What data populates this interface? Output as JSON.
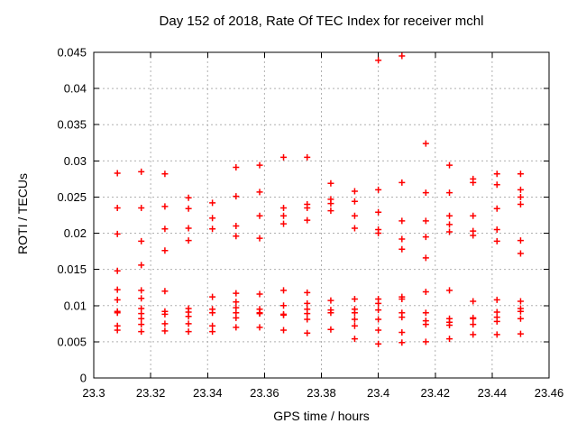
{
  "chart_data": {
    "type": "scatter",
    "title": "Day 152 of 2018, Rate Of TEC Index for receiver mchl",
    "xlabel": "GPS time / hours",
    "ylabel": "ROTI / TECUs",
    "xlim": [
      23.3,
      23.46
    ],
    "ylim": [
      0,
      0.045
    ],
    "grid": true,
    "legend": "none",
    "marker": {
      "shape": "plus",
      "color": "#ff0000",
      "size": 7
    },
    "colors": {
      "points": "#ff0000",
      "grid": "#b0b0b0",
      "axis": "#000000",
      "background": "#ffffff",
      "text": "#000000"
    },
    "xticks": {
      "values": [
        23.3,
        23.32,
        23.34,
        23.36,
        23.38,
        23.4,
        23.42,
        23.44,
        23.46
      ],
      "labels": [
        "23.3",
        "23.32",
        "23.34",
        "23.36",
        "23.38",
        "23.4",
        "23.42",
        "23.44",
        "23.46"
      ]
    },
    "yticks": {
      "values": [
        0,
        0.005,
        0.01,
        0.015,
        0.02,
        0.025,
        0.03,
        0.035,
        0.04,
        0.045
      ],
      "labels": [
        "0",
        "0.005",
        "0.01",
        "0.015",
        "0.02",
        "0.025",
        "0.03",
        "0.035",
        "0.04",
        "0.045"
      ]
    },
    "series": [
      {
        "name": "ROTI",
        "clusters": [
          {
            "x": 23.3083,
            "y": [
              0.0283,
              0.0235,
              0.0199,
              0.0148,
              0.0122,
              0.0108,
              0.0092,
              0.009,
              0.0072,
              0.0066
            ]
          },
          {
            "x": 23.3167,
            "y": [
              0.0285,
              0.0235,
              0.0189,
              0.0156,
              0.0121,
              0.011,
              0.0096,
              0.0089,
              0.0082,
              0.0074,
              0.0064
            ]
          },
          {
            "x": 23.325,
            "y": [
              0.0282,
              0.0237,
              0.0206,
              0.0176,
              0.012,
              0.0092,
              0.0088,
              0.0075,
              0.0065
            ]
          },
          {
            "x": 23.3333,
            "y": [
              0.0249,
              0.0234,
              0.0207,
              0.019,
              0.0096,
              0.0091,
              0.0085,
              0.0075,
              0.0064
            ]
          },
          {
            "x": 23.3417,
            "y": [
              0.0242,
              0.0221,
              0.0206,
              0.0112,
              0.0095,
              0.009,
              0.0072,
              0.0064
            ]
          },
          {
            "x": 23.35,
            "y": [
              0.0291,
              0.0251,
              0.021,
              0.0196,
              0.0117,
              0.0105,
              0.0097,
              0.009,
              0.0083,
              0.007
            ]
          },
          {
            "x": 23.3583,
            "y": [
              0.0294,
              0.0257,
              0.0224,
              0.0193,
              0.0116,
              0.0095,
              0.009,
              0.0089,
              0.007
            ]
          },
          {
            "x": 23.3667,
            "y": [
              0.0305,
              0.0235,
              0.0224,
              0.0213,
              0.0121,
              0.01,
              0.0088,
              0.0087,
              0.0066
            ]
          },
          {
            "x": 23.375,
            "y": [
              0.0305,
              0.024,
              0.0235,
              0.0218,
              0.0118,
              0.0103,
              0.0095,
              0.0089,
              0.0081,
              0.0062
            ]
          },
          {
            "x": 23.3833,
            "y": [
              0.0269,
              0.0247,
              0.0241,
              0.0231,
              0.0107,
              0.0094,
              0.009,
              0.0067
            ]
          },
          {
            "x": 23.3917,
            "y": [
              0.0258,
              0.0244,
              0.0224,
              0.0207,
              0.0109,
              0.0095,
              0.009,
              0.0081,
              0.0072,
              0.0054
            ]
          },
          {
            "x": 23.4,
            "y": [
              0.0439,
              0.026,
              0.0229,
              0.0205,
              0.02,
              0.0109,
              0.0103,
              0.0094,
              0.0081,
              0.0066,
              0.0047
            ]
          },
          {
            "x": 23.4083,
            "y": [
              0.0445,
              0.027,
              0.0217,
              0.0192,
              0.0178,
              0.0112,
              0.0109,
              0.009,
              0.0084,
              0.0063,
              0.0049
            ]
          },
          {
            "x": 23.4167,
            "y": [
              0.0324,
              0.0256,
              0.0217,
              0.0195,
              0.0166,
              0.0119,
              0.009,
              0.0079,
              0.0074,
              0.005
            ]
          },
          {
            "x": 23.425,
            "y": [
              0.0294,
              0.0256,
              0.0224,
              0.0212,
              0.0202,
              0.0121,
              0.0082,
              0.0077,
              0.0073,
              0.0054
            ]
          },
          {
            "x": 23.4333,
            "y": [
              0.0275,
              0.027,
              0.0224,
              0.0203,
              0.0197,
              0.0106,
              0.0083,
              0.0082,
              0.0074,
              0.006
            ]
          },
          {
            "x": 23.4417,
            "y": [
              0.0282,
              0.0267,
              0.0234,
              0.0205,
              0.0189,
              0.0108,
              0.0091,
              0.0084,
              0.0078,
              0.006
            ]
          },
          {
            "x": 23.45,
            "y": [
              0.0282,
              0.026,
              0.025,
              0.024,
              0.019,
              0.0172,
              0.0106,
              0.0096,
              0.0092,
              0.0082,
              0.0061
            ]
          }
        ]
      }
    ]
  }
}
